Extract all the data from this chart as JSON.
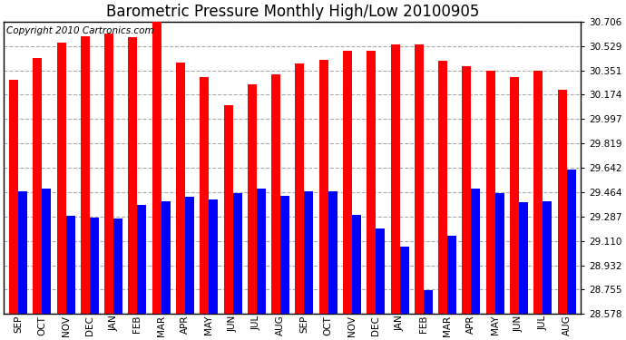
{
  "title": "Barometric Pressure Monthly High/Low 20100905",
  "copyright": "Copyright 2010 Cartronics.com",
  "months": [
    "SEP",
    "OCT",
    "NOV",
    "DEC",
    "JAN",
    "FEB",
    "MAR",
    "APR",
    "MAY",
    "JUN",
    "JUL",
    "AUG",
    "SEP",
    "OCT",
    "NOV",
    "DEC",
    "JAN",
    "FEB",
    "MAR",
    "APR",
    "MAY",
    "JUN",
    "JUL",
    "AUG"
  ],
  "highs": [
    30.28,
    30.44,
    30.55,
    30.6,
    30.62,
    30.59,
    30.72,
    30.41,
    30.3,
    30.1,
    30.25,
    30.32,
    30.4,
    30.43,
    30.49,
    30.49,
    30.54,
    30.54,
    30.42,
    30.38,
    30.35,
    30.3,
    30.35,
    30.21
  ],
  "lows": [
    29.47,
    29.49,
    29.29,
    29.28,
    29.27,
    29.37,
    29.4,
    29.43,
    29.41,
    29.46,
    29.49,
    29.44,
    29.47,
    29.47,
    29.3,
    29.2,
    29.07,
    28.75,
    29.15,
    29.49,
    29.46,
    29.39,
    29.4,
    29.63
  ],
  "ymin": 28.578,
  "ymax": 30.706,
  "yticks": [
    28.578,
    28.755,
    28.932,
    29.11,
    29.287,
    29.464,
    29.642,
    29.819,
    29.997,
    30.174,
    30.351,
    30.529,
    30.706
  ],
  "bar_width": 0.38,
  "high_color": "#FF0000",
  "low_color": "#0000FF",
  "bg_color": "#FFFFFF",
  "grid_color": "#AAAAAA",
  "title_fontsize": 12,
  "copyright_fontsize": 7.5
}
